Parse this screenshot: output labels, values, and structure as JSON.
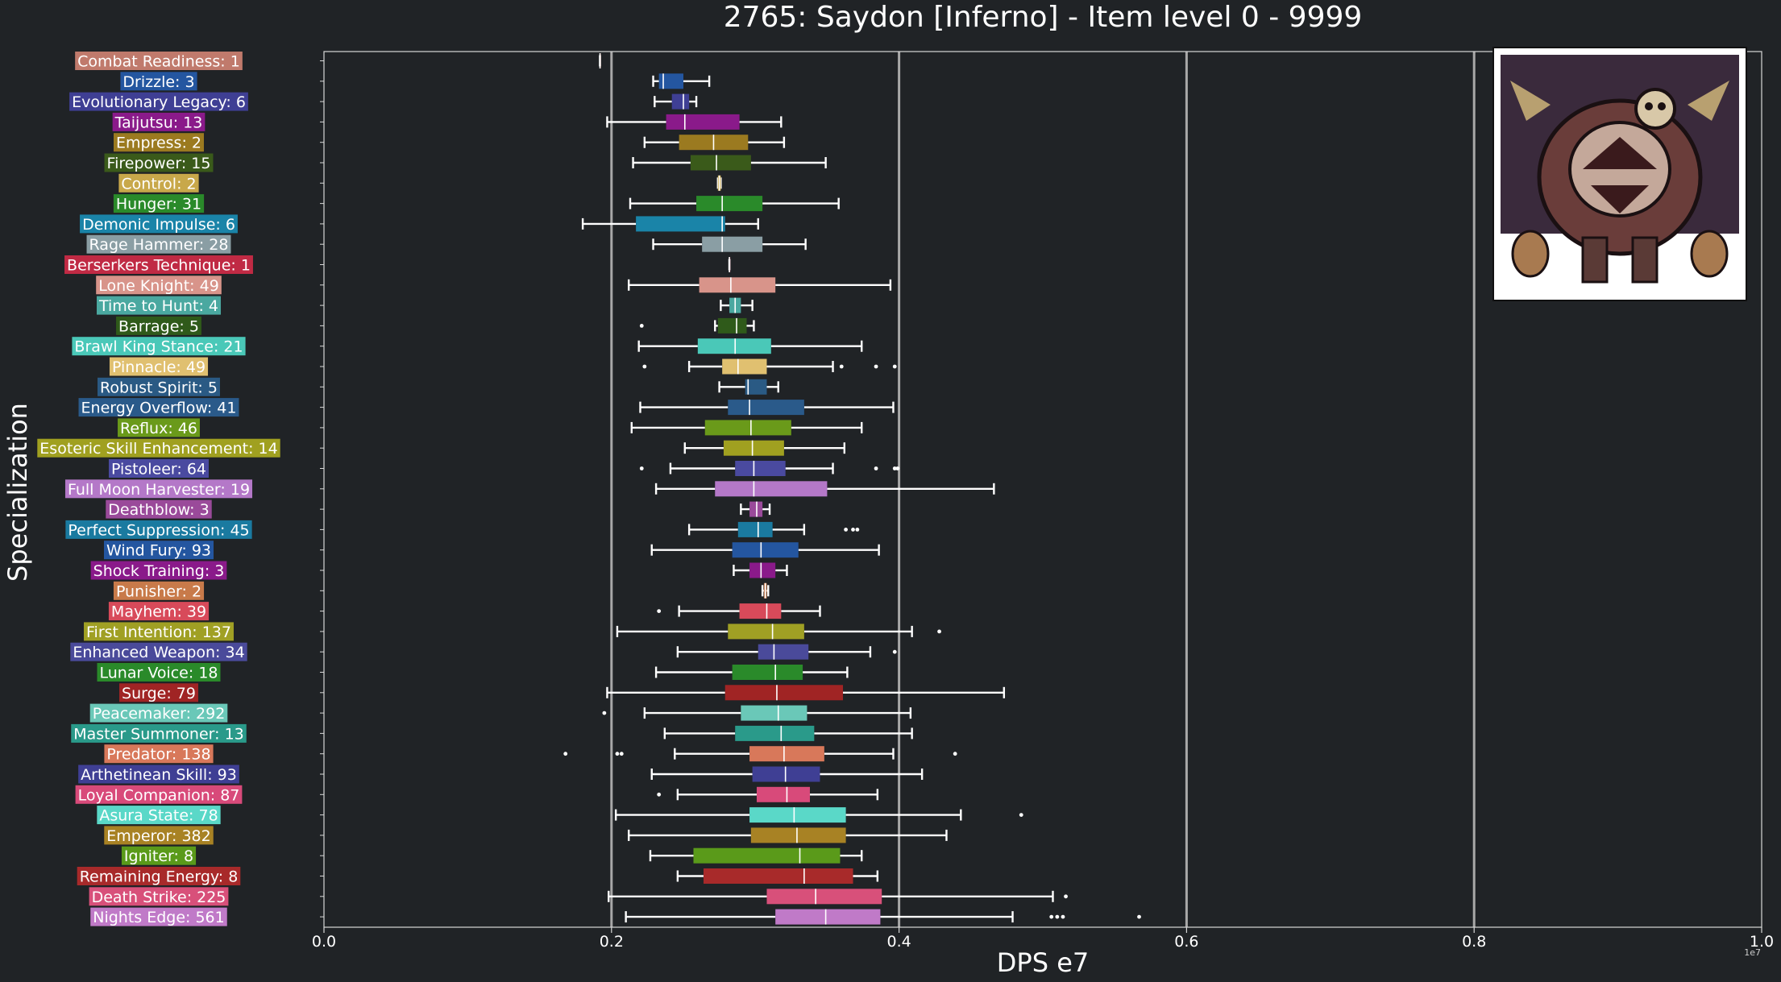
{
  "chart_data": {
    "type": "boxplot",
    "title": "2765: Saydon [Inferno] - Item level 0 - 9999",
    "xlabel": "DPS e7",
    "ylabel": "Specialization",
    "xlim": [
      0.0,
      1.0
    ],
    "xticks": [
      "0.0",
      "0.2",
      "0.4",
      "0.6",
      "0.8",
      "1.0"
    ],
    "x_offset_label": "1e7",
    "grid": "vertical",
    "image_note": "boss portrait in top-right corner",
    "series": [
      {
        "name": "Combat Readiness: 1",
        "color": "#c07a6c",
        "whislo": 0.192,
        "q1": 0.192,
        "med": 0.192,
        "q3": 0.192,
        "whishi": 0.192,
        "fliers": []
      },
      {
        "name": "Drizzle: 3",
        "color": "#2456a0",
        "whislo": 0.229,
        "q1": 0.233,
        "med": 0.236,
        "q3": 0.25,
        "whishi": 0.268,
        "fliers": []
      },
      {
        "name": "Evolutionary Legacy: 6",
        "color": "#3f3f94",
        "whislo": 0.23,
        "q1": 0.242,
        "med": 0.25,
        "q3": 0.254,
        "whishi": 0.259,
        "fliers": []
      },
      {
        "name": "Taijutsu: 13",
        "color": "#8a1a8a",
        "whislo": 0.197,
        "q1": 0.238,
        "med": 0.251,
        "q3": 0.289,
        "whishi": 0.318,
        "fliers": []
      },
      {
        "name": "Empress: 2",
        "color": "#9b7a20",
        "whislo": 0.223,
        "q1": 0.247,
        "med": 0.271,
        "q3": 0.295,
        "whishi": 0.32,
        "fliers": []
      },
      {
        "name": "Firepower: 15",
        "color": "#3a5a1a",
        "whislo": 0.215,
        "q1": 0.255,
        "med": 0.273,
        "q3": 0.297,
        "whishi": 0.349,
        "fliers": []
      },
      {
        "name": "Control: 2",
        "color": "#c8a84a",
        "whislo": 0.274,
        "q1": 0.274,
        "med": 0.275,
        "q3": 0.276,
        "whishi": 0.276,
        "fliers": []
      },
      {
        "name": "Hunger: 31",
        "color": "#2a8a2a",
        "whislo": 0.213,
        "q1": 0.259,
        "med": 0.277,
        "q3": 0.305,
        "whishi": 0.358,
        "fliers": []
      },
      {
        "name": "Demonic Impulse: 6",
        "color": "#1a84a8",
        "whislo": 0.18,
        "q1": 0.217,
        "med": 0.277,
        "q3": 0.279,
        "whishi": 0.302,
        "fliers": []
      },
      {
        "name": "Rage Hammer: 28",
        "color": "#8a9ea4",
        "whislo": 0.229,
        "q1": 0.263,
        "med": 0.277,
        "q3": 0.305,
        "whishi": 0.335,
        "fliers": []
      },
      {
        "name": "Berserkers Technique: 1",
        "color": "#c02a44",
        "whislo": 0.282,
        "q1": 0.282,
        "med": 0.282,
        "q3": 0.282,
        "whishi": 0.282,
        "fliers": []
      },
      {
        "name": "Lone Knight: 49",
        "color": "#d8948a",
        "whislo": 0.212,
        "q1": 0.261,
        "med": 0.283,
        "q3": 0.314,
        "whishi": 0.394,
        "fliers": []
      },
      {
        "name": "Time to Hunt: 4",
        "color": "#4aa8a0",
        "whislo": 0.276,
        "q1": 0.282,
        "med": 0.286,
        "q3": 0.29,
        "whishi": 0.298,
        "fliers": []
      },
      {
        "name": "Barrage: 5",
        "color": "#2f5a1a",
        "whislo": 0.272,
        "q1": 0.274,
        "med": 0.287,
        "q3": 0.294,
        "whishi": 0.299,
        "fliers": [
          0.221
        ]
      },
      {
        "name": "Brawl King Stance: 21",
        "color": "#4ac8b8",
        "whislo": 0.219,
        "q1": 0.26,
        "med": 0.286,
        "q3": 0.311,
        "whishi": 0.374,
        "fliers": []
      },
      {
        "name": "Pinnacle: 49",
        "color": "#e0c070",
        "whislo": 0.254,
        "q1": 0.277,
        "med": 0.288,
        "q3": 0.308,
        "whishi": 0.354,
        "fliers": [
          0.223,
          0.36,
          0.384,
          0.397
        ]
      },
      {
        "name": "Robust Spirit: 5",
        "color": "#2a5a84",
        "whislo": 0.275,
        "q1": 0.293,
        "med": 0.295,
        "q3": 0.308,
        "whishi": 0.316,
        "fliers": []
      },
      {
        "name": "Energy Overflow: 41",
        "color": "#2a5a8a",
        "whislo": 0.22,
        "q1": 0.281,
        "med": 0.296,
        "q3": 0.334,
        "whishi": 0.396,
        "fliers": []
      },
      {
        "name": "Reflux: 46",
        "color": "#6a9a1a",
        "whislo": 0.214,
        "q1": 0.265,
        "med": 0.297,
        "q3": 0.325,
        "whishi": 0.374,
        "fliers": []
      },
      {
        "name": "Esoteric Skill Enhancement: 14",
        "color": "#a0a020",
        "whislo": 0.251,
        "q1": 0.278,
        "med": 0.298,
        "q3": 0.32,
        "whishi": 0.362,
        "fliers": []
      },
      {
        "name": "Pistoleer: 64",
        "color": "#4a4aa0",
        "whislo": 0.241,
        "q1": 0.286,
        "med": 0.299,
        "q3": 0.321,
        "whishi": 0.354,
        "fliers": [
          0.221,
          0.384,
          0.397,
          0.399
        ]
      },
      {
        "name": "Full Moon Harvester: 19",
        "color": "#b478c8",
        "whislo": 0.231,
        "q1": 0.272,
        "med": 0.299,
        "q3": 0.35,
        "whishi": 0.466,
        "fliers": []
      },
      {
        "name": "Deathblow: 3",
        "color": "#9a4a9a",
        "whislo": 0.29,
        "q1": 0.296,
        "med": 0.301,
        "q3": 0.305,
        "whishi": 0.31,
        "fliers": []
      },
      {
        "name": "Perfect Suppression: 45",
        "color": "#1a7aa0",
        "whislo": 0.254,
        "q1": 0.288,
        "med": 0.302,
        "q3": 0.312,
        "whishi": 0.334,
        "fliers": [
          0.363,
          0.368,
          0.371
        ]
      },
      {
        "name": "Wind Fury: 93",
        "color": "#2456a0",
        "whislo": 0.228,
        "q1": 0.284,
        "med": 0.304,
        "q3": 0.33,
        "whishi": 0.386,
        "fliers": []
      },
      {
        "name": "Shock Training: 3",
        "color": "#8a1a8a",
        "whislo": 0.285,
        "q1": 0.296,
        "med": 0.304,
        "q3": 0.314,
        "whishi": 0.322,
        "fliers": []
      },
      {
        "name": "Punisher: 2",
        "color": "#c87a4a",
        "whislo": 0.305,
        "q1": 0.306,
        "med": 0.307,
        "q3": 0.308,
        "whishi": 0.309,
        "fliers": []
      },
      {
        "name": "Mayhem: 39",
        "color": "#d84a5a",
        "whislo": 0.247,
        "q1": 0.289,
        "med": 0.308,
        "q3": 0.318,
        "whishi": 0.345,
        "fliers": [
          0.233
        ]
      },
      {
        "name": "First Intention: 137",
        "color": "#a0a024",
        "whislo": 0.204,
        "q1": 0.281,
        "med": 0.312,
        "q3": 0.334,
        "whishi": 0.409,
        "fliers": [
          0.428
        ]
      },
      {
        "name": "Enhanced Weapon: 34",
        "color": "#4a4a9a",
        "whislo": 0.246,
        "q1": 0.302,
        "med": 0.313,
        "q3": 0.337,
        "whishi": 0.38,
        "fliers": [
          0.397
        ]
      },
      {
        "name": "Lunar Voice: 18",
        "color": "#2a8a2a",
        "whislo": 0.231,
        "q1": 0.284,
        "med": 0.314,
        "q3": 0.333,
        "whishi": 0.364,
        "fliers": []
      },
      {
        "name": "Surge: 79",
        "color": "#a02424",
        "whislo": 0.197,
        "q1": 0.279,
        "med": 0.315,
        "q3": 0.361,
        "whishi": 0.473,
        "fliers": []
      },
      {
        "name": "Peacemaker: 292",
        "color": "#6ac8b8",
        "whislo": 0.223,
        "q1": 0.29,
        "med": 0.316,
        "q3": 0.336,
        "whishi": 0.408,
        "fliers": [
          0.195
        ]
      },
      {
        "name": "Master Summoner: 13",
        "color": "#2a9a8a",
        "whislo": 0.237,
        "q1": 0.286,
        "med": 0.318,
        "q3": 0.341,
        "whishi": 0.409,
        "fliers": []
      },
      {
        "name": "Predator: 138",
        "color": "#d8785a",
        "whislo": 0.244,
        "q1": 0.296,
        "med": 0.32,
        "q3": 0.348,
        "whishi": 0.396,
        "fliers": [
          0.168,
          0.204,
          0.207,
          0.439
        ]
      },
      {
        "name": "Arthetinean Skill: 93",
        "color": "#3f3f94",
        "whislo": 0.228,
        "q1": 0.298,
        "med": 0.321,
        "q3": 0.345,
        "whishi": 0.416,
        "fliers": []
      },
      {
        "name": "Loyal Companion: 87",
        "color": "#d84a7a",
        "whislo": 0.246,
        "q1": 0.301,
        "med": 0.322,
        "q3": 0.338,
        "whishi": 0.385,
        "fliers": [
          0.233
        ]
      },
      {
        "name": "Asura State: 78",
        "color": "#5ad8c8",
        "whislo": 0.203,
        "q1": 0.296,
        "med": 0.327,
        "q3": 0.363,
        "whishi": 0.443,
        "fliers": [
          0.485
        ]
      },
      {
        "name": "Emperor: 382",
        "color": "#a88224",
        "whislo": 0.212,
        "q1": 0.297,
        "med": 0.329,
        "q3": 0.363,
        "whishi": 0.433,
        "fliers": []
      },
      {
        "name": "Igniter: 8",
        "color": "#5a9a1a",
        "whislo": 0.227,
        "q1": 0.257,
        "med": 0.331,
        "q3": 0.359,
        "whishi": 0.374,
        "fliers": []
      },
      {
        "name": "Remaining Energy: 8",
        "color": "#a82a2a",
        "whislo": 0.246,
        "q1": 0.264,
        "med": 0.334,
        "q3": 0.368,
        "whishi": 0.385,
        "fliers": []
      },
      {
        "name": "Death Strike: 225",
        "color": "#d8507a",
        "whislo": 0.198,
        "q1": 0.308,
        "med": 0.342,
        "q3": 0.388,
        "whishi": 0.507,
        "fliers": [
          0.516
        ]
      },
      {
        "name": "Nights Edge: 561",
        "color": "#c07ac8",
        "whislo": 0.21,
        "q1": 0.314,
        "med": 0.349,
        "q3": 0.387,
        "whishi": 0.479,
        "fliers": [
          0.506,
          0.51,
          0.514,
          0.567
        ]
      }
    ]
  }
}
